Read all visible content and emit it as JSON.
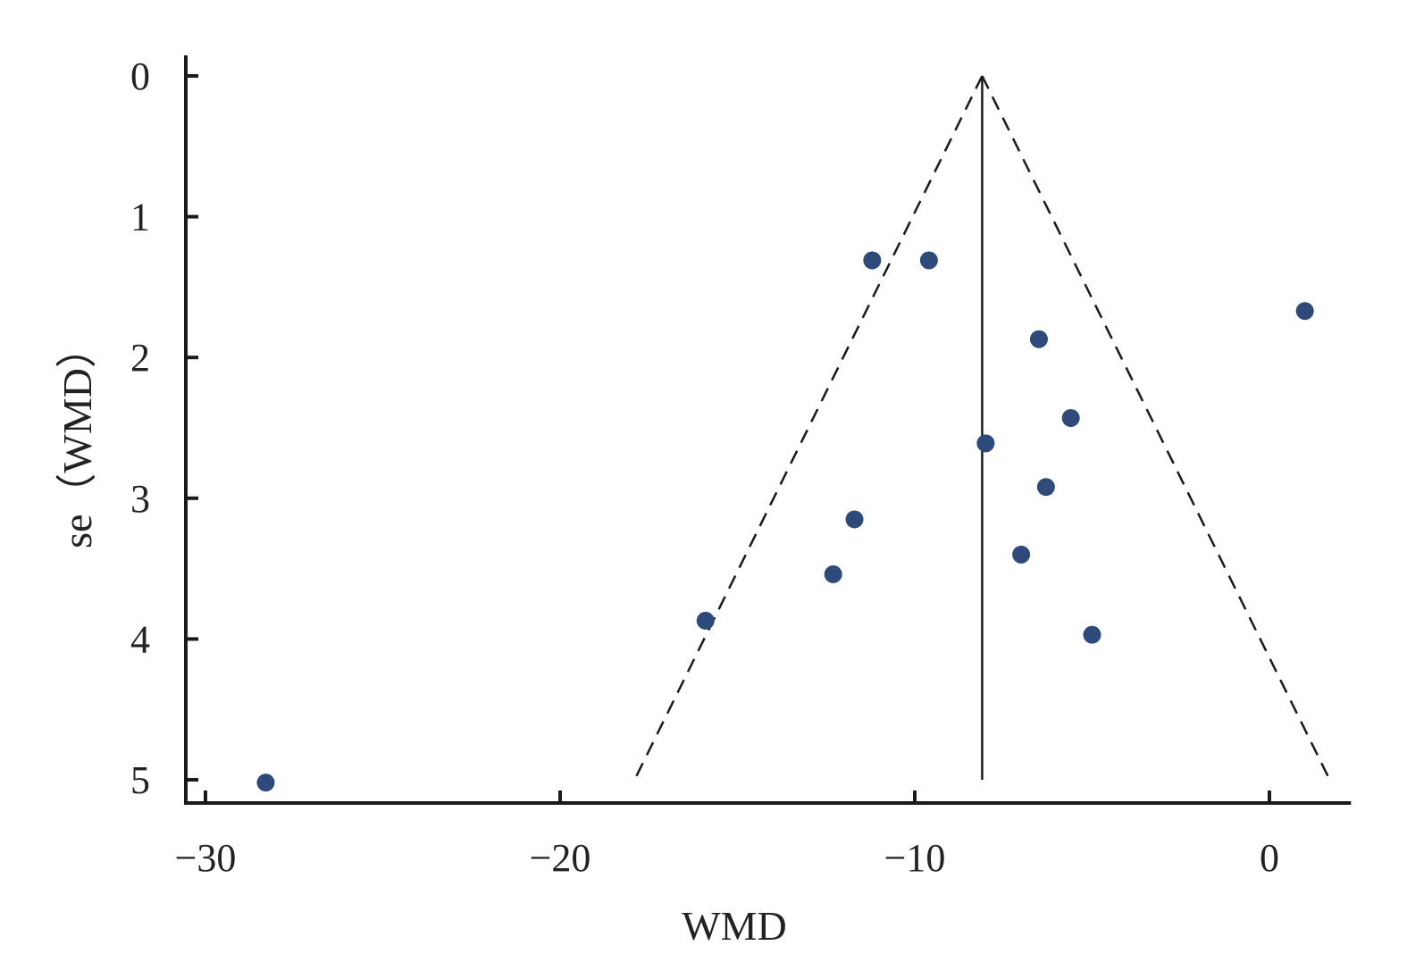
{
  "chart_data": {
    "type": "scatter",
    "title": "",
    "xlabel": "WMD",
    "ylabel": "se（WMD）",
    "xlim": [
      -30.5,
      2.3
    ],
    "ylim": [
      0,
      5.15
    ],
    "y_inverted": true,
    "grid": false,
    "x_ticks": [
      {
        "value": -30,
        "label": "−30"
      },
      {
        "value": -20,
        "label": "−20"
      },
      {
        "value": -10,
        "label": "−10"
      },
      {
        "value": 0,
        "label": "0"
      }
    ],
    "y_ticks": [
      {
        "value": 0,
        "label": "0"
      },
      {
        "value": 1,
        "label": "1"
      },
      {
        "value": 2,
        "label": "2"
      },
      {
        "value": 3,
        "label": "3"
      },
      {
        "value": 4,
        "label": "4"
      },
      {
        "value": 5,
        "label": "5"
      }
    ],
    "pooled_estimate": -8.1,
    "funnel_bottom_se": 5.0,
    "funnel_limits_at_bottom": [
      -17.9,
      1.7
    ],
    "points": [
      {
        "x": -11.2,
        "y": 1.31
      },
      {
        "x": -9.6,
        "y": 1.31
      },
      {
        "x": 1.0,
        "y": 1.67
      },
      {
        "x": -6.5,
        "y": 1.87
      },
      {
        "x": -5.6,
        "y": 2.43
      },
      {
        "x": -8.0,
        "y": 2.61
      },
      {
        "x": -6.3,
        "y": 2.92
      },
      {
        "x": -11.7,
        "y": 3.15
      },
      {
        "x": -7.0,
        "y": 3.4
      },
      {
        "x": -12.3,
        "y": 3.54
      },
      {
        "x": -15.9,
        "y": 3.87
      },
      {
        "x": -5.0,
        "y": 3.97
      },
      {
        "x": -28.3,
        "y": 5.02
      }
    ],
    "colors": {
      "point": "#2d4a7a",
      "axis": "#1a1a1a",
      "line": "#1a1a1a"
    }
  }
}
